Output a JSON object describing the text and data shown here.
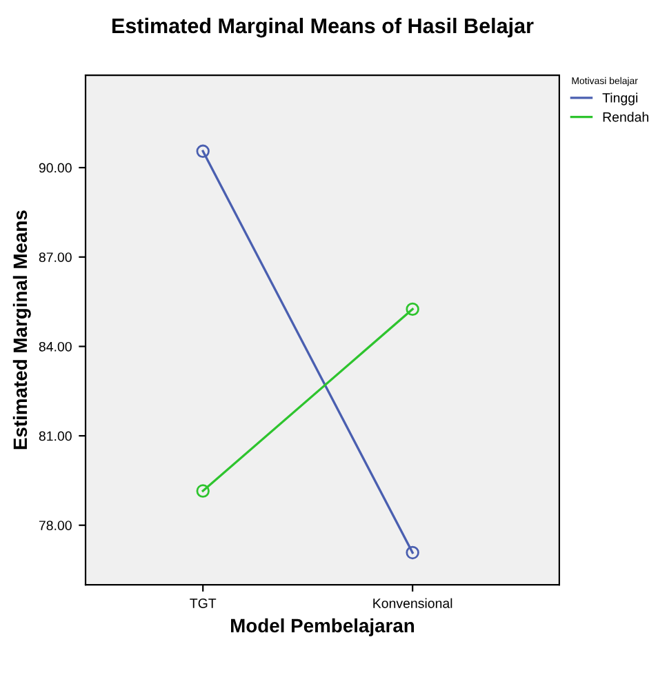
{
  "chart_data": {
    "type": "line",
    "title": "Estimated Marginal Means of Hasil Belajar",
    "xlabel": "Model Pembelajaran",
    "ylabel": "Estimated Marginal Means",
    "legend_title": "Motivasi belajar",
    "categories": [
      "TGT",
      "Konvensional"
    ],
    "series": [
      {
        "name": "Tinggi",
        "color": "#4a5fb0",
        "values": [
          90.55,
          77.08
        ]
      },
      {
        "name": "Rendah",
        "color": "#2ec42e",
        "values": [
          79.15,
          85.25
        ]
      }
    ],
    "ylim": [
      76.0,
      93.1
    ],
    "yticks": [
      {
        "value": 78,
        "label": "78.00"
      },
      {
        "value": 81,
        "label": "81.00"
      },
      {
        "value": 84,
        "label": "84.00"
      },
      {
        "value": 87,
        "label": "87.00"
      },
      {
        "value": 90,
        "label": "90.00"
      }
    ],
    "marker": "circle",
    "line_style": "solid",
    "grid": false,
    "legend": "top right"
  }
}
